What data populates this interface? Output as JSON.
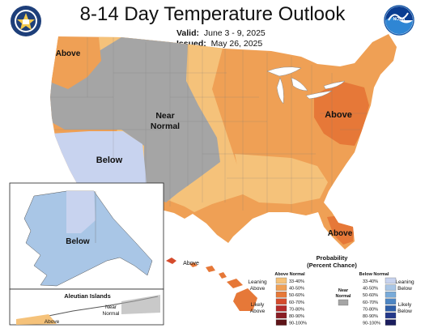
{
  "title": "8-14 Day Temperature Outlook",
  "valid_label": "Valid:",
  "valid_value": "June 3 - 9, 2025",
  "issued_label": "Issued:",
  "issued_value": "May 26, 2025",
  "logos": {
    "left": "NWS-CPC seal",
    "right": "NOAA",
    "right_text": "NOAA"
  },
  "map_labels": {
    "above_nw": "Above",
    "near_normal": [
      "Near",
      "Normal"
    ],
    "below_sw": "Below",
    "above_ne": "Above",
    "above_fl": "Above",
    "below_ak": "Below",
    "above_hi": "Above",
    "aleutian_title": "Aleutian Islands",
    "aleutian_near": [
      "Near",
      "Normal"
    ],
    "aleutian_above": "Above"
  },
  "legend": {
    "title_line1": "Probability",
    "title_line2": "(Percent Chance)",
    "above_header": "Above Normal",
    "below_header": "Below Normal",
    "leaning_above": [
      "Leaning",
      "Above"
    ],
    "likely_above": [
      "Likely",
      "Above"
    ],
    "leaning_below": [
      "Leaning",
      "Below"
    ],
    "likely_below": [
      "Likely",
      "Below"
    ],
    "near_normal": [
      "Near",
      "Normal"
    ],
    "above_bins": [
      {
        "label": "33-40%",
        "color": "#f5c27a"
      },
      {
        "label": "40-50%",
        "color": "#efa055"
      },
      {
        "label": "50-60%",
        "color": "#e67838"
      },
      {
        "label": "60-70%",
        "color": "#d54b2c"
      },
      {
        "label": "70-80%",
        "color": "#b42a2a"
      },
      {
        "label": "80-90%",
        "color": "#8a1d24"
      },
      {
        "label": "90-100%",
        "color": "#5e1418"
      }
    ],
    "below_bins": [
      {
        "label": "33-40%",
        "color": "#c8d3ef"
      },
      {
        "label": "40-50%",
        "color": "#a9c6e6"
      },
      {
        "label": "50-60%",
        "color": "#79abd9"
      },
      {
        "label": "60-70%",
        "color": "#4d86c4"
      },
      {
        "label": "70-80%",
        "color": "#2e5ea8"
      },
      {
        "label": "80-90%",
        "color": "#23388a"
      },
      {
        "label": "90-100%",
        "color": "#1b1d5e"
      }
    ],
    "near_color": "#a5a5a5"
  },
  "colors": {
    "above_33_40": "#f5c27a",
    "above_40_50": "#efa055",
    "above_50_60": "#e67838",
    "below_33_40": "#c8d3ef",
    "below_40_50": "#a9c6e6",
    "near_normal": "#a5a5a5"
  }
}
